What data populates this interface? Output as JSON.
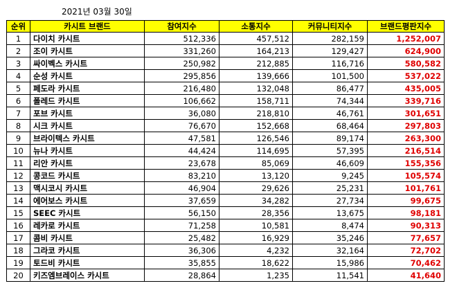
{
  "date": "2021년 03월 30일",
  "headers": [
    "순위",
    "카시트 브랜드",
    "참여지수",
    "소통지수",
    "커뮤니티지수",
    "브랜드평판지수"
  ],
  "rows": [
    {
      "rank": "1",
      "brand": "다이치 카시트",
      "participation": "512,336",
      "communication": "457,512",
      "community": "282,159",
      "reputation": "1,252,007"
    },
    {
      "rank": "2",
      "brand": "조이 카시트",
      "participation": "331,260",
      "communication": "164,213",
      "community": "129,427",
      "reputation": "624,900"
    },
    {
      "rank": "3",
      "brand": "싸이벡스 카시트",
      "participation": "250,982",
      "communication": "212,885",
      "community": "116,716",
      "reputation": "580,582"
    },
    {
      "rank": "4",
      "brand": "순성 카시트",
      "participation": "295,856",
      "communication": "139,666",
      "community": "101,500",
      "reputation": "537,022"
    },
    {
      "rank": "5",
      "brand": "페도라 카시트",
      "participation": "216,480",
      "communication": "132,048",
      "community": "86,477",
      "reputation": "435,005"
    },
    {
      "rank": "6",
      "brand": "폴레드 카시트",
      "participation": "106,662",
      "communication": "158,711",
      "community": "74,344",
      "reputation": "339,716"
    },
    {
      "rank": "7",
      "brand": "포브 카시트",
      "participation": "36,080",
      "communication": "218,810",
      "community": "46,761",
      "reputation": "301,651"
    },
    {
      "rank": "8",
      "brand": "시크 카시트",
      "participation": "76,670",
      "communication": "152,668",
      "community": "68,464",
      "reputation": "297,803"
    },
    {
      "rank": "9",
      "brand": "브라이텍스 카시트",
      "participation": "47,581",
      "communication": "126,546",
      "community": "89,174",
      "reputation": "263,300"
    },
    {
      "rank": "10",
      "brand": "뉴나 카시트",
      "participation": "44,424",
      "communication": "114,695",
      "community": "57,395",
      "reputation": "216,514"
    },
    {
      "rank": "11",
      "brand": "리안 카시트",
      "participation": "23,678",
      "communication": "85,069",
      "community": "46,609",
      "reputation": "155,356"
    },
    {
      "rank": "12",
      "brand": "콩코드 카시트",
      "participation": "83,210",
      "communication": "13,120",
      "community": "9,245",
      "reputation": "105,574"
    },
    {
      "rank": "13",
      "brand": "맥시코시 카시트",
      "participation": "46,904",
      "communication": "29,626",
      "community": "25,231",
      "reputation": "101,761"
    },
    {
      "rank": "14",
      "brand": "에어보스 카시트",
      "participation": "37,659",
      "communication": "34,282",
      "community": "27,734",
      "reputation": "99,675"
    },
    {
      "rank": "15",
      "brand": "SEEC 카시트",
      "participation": "56,150",
      "communication": "28,356",
      "community": "13,675",
      "reputation": "98,181"
    },
    {
      "rank": "16",
      "brand": "레카로 카시트",
      "participation": "71,258",
      "communication": "10,581",
      "community": "8,474",
      "reputation": "90,313"
    },
    {
      "rank": "17",
      "brand": "콤비 카시트",
      "participation": "25,482",
      "communication": "16,929",
      "community": "35,246",
      "reputation": "77,657"
    },
    {
      "rank": "18",
      "brand": "그라코 카시트",
      "participation": "36,306",
      "communication": "4,232",
      "community": "32,164",
      "reputation": "72,702"
    },
    {
      "rank": "19",
      "brand": "토드비 카시트",
      "participation": "35,855",
      "communication": "18,622",
      "community": "15,986",
      "reputation": "70,462"
    },
    {
      "rank": "20",
      "brand": "키즈엠브레이스 카시트",
      "participation": "28,864",
      "communication": "1,235",
      "community": "11,541",
      "reputation": "41,640"
    }
  ],
  "colors": {
    "header_bg": "#ffff00",
    "score_text": "#e00000"
  }
}
